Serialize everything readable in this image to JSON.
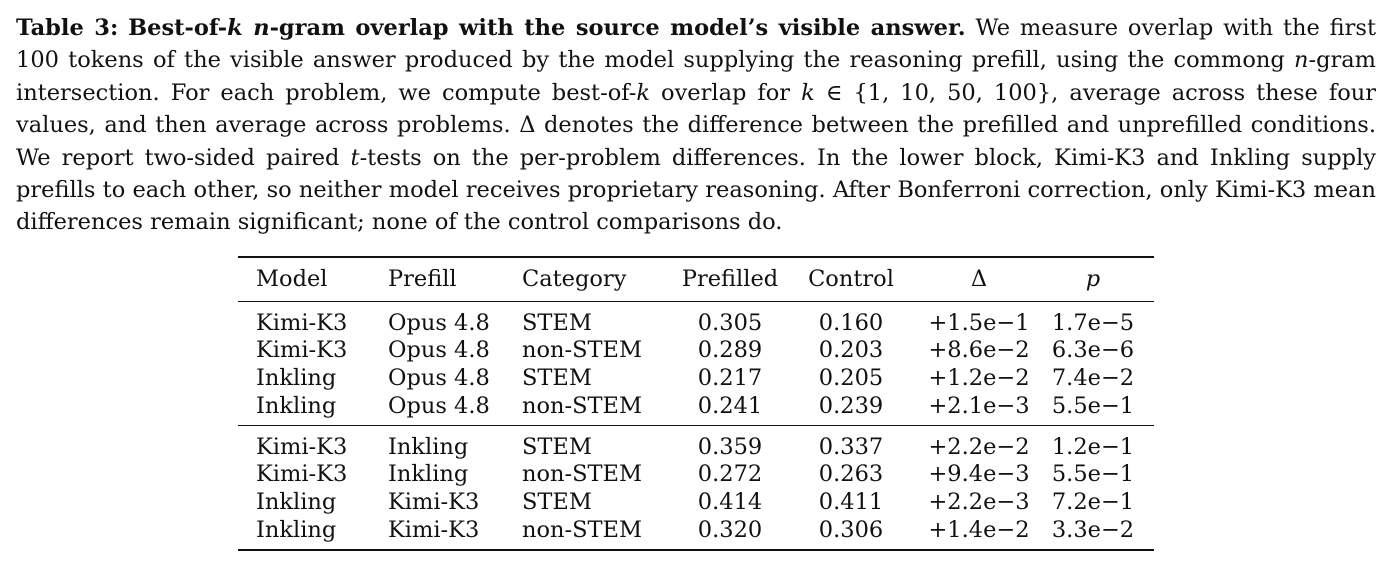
{
  "caption": {
    "label": "Table 3:",
    "title_pre": "Best-of-",
    "title_k": "k",
    "title_n": "n",
    "title_post": "-gram overlap with the source model’s visible answer.",
    "s1": "We measure overlap with the first 100 tokens of the visible answer produced by the model supplying the reasoning prefill, using the commong",
    "s1_n": "n",
    "s1_end": "-gram intersection. For each problem, we compute best-of-",
    "s2_k1": "k",
    "s2_mid": "overlap for",
    "s2_k2": "k",
    "s2_set": "∈ {1, 10, 50, 100},",
    "s2_end": "average across these four values, and then average across problems.",
    "s3": "Δ denotes the difference between the prefilled and unprefilled conditions. We report two-sided paired",
    "s3_t": "t",
    "s3_end": "-tests on the per-problem differences. In the lower block, Kimi-K3 and Inkling supply prefills to each other, so neither model receives proprietary reasoning. After Bonferroni correction, only Kimi-K3 mean differences remain significant; none of the control comparisons do."
  },
  "table": {
    "headers": {
      "model": "Model",
      "prefill": "Prefill",
      "category": "Category",
      "prefilled": "Prefilled",
      "control": "Control",
      "delta": "Δ",
      "p": "p"
    },
    "block1": [
      {
        "model": "Kimi-K3",
        "prefill": "Opus 4.8",
        "category": "STEM",
        "prefilled": "0.305",
        "control": "0.160",
        "delta": "+1.5e−1",
        "p": "1.7e−5"
      },
      {
        "model": "Kimi-K3",
        "prefill": "Opus 4.8",
        "category": "non-STEM",
        "prefilled": "0.289",
        "control": "0.203",
        "delta": "+8.6e−2",
        "p": "6.3e−6"
      },
      {
        "model": "Inkling",
        "prefill": "Opus 4.8",
        "category": "STEM",
        "prefilled": "0.217",
        "control": "0.205",
        "delta": "+1.2e−2",
        "p": "7.4e−2"
      },
      {
        "model": "Inkling",
        "prefill": "Opus 4.8",
        "category": "non-STEM",
        "prefilled": "0.241",
        "control": "0.239",
        "delta": "+2.1e−3",
        "p": "5.5e−1"
      }
    ],
    "block2": [
      {
        "model": "Kimi-K3",
        "prefill": "Inkling",
        "category": "STEM",
        "prefilled": "0.359",
        "control": "0.337",
        "delta": "+2.2e−2",
        "p": "1.2e−1"
      },
      {
        "model": "Kimi-K3",
        "prefill": "Inkling",
        "category": "non-STEM",
        "prefilled": "0.272",
        "control": "0.263",
        "delta": "+9.4e−3",
        "p": "5.5e−1"
      },
      {
        "model": "Inkling",
        "prefill": "Kimi-K3",
        "category": "STEM",
        "prefilled": "0.414",
        "control": "0.411",
        "delta": "+2.2e−3",
        "p": "7.2e−1"
      },
      {
        "model": "Inkling",
        "prefill": "Kimi-K3",
        "category": "non-STEM",
        "prefilled": "0.320",
        "control": "0.306",
        "delta": "+1.4e−2",
        "p": "3.3e−2"
      }
    ]
  }
}
